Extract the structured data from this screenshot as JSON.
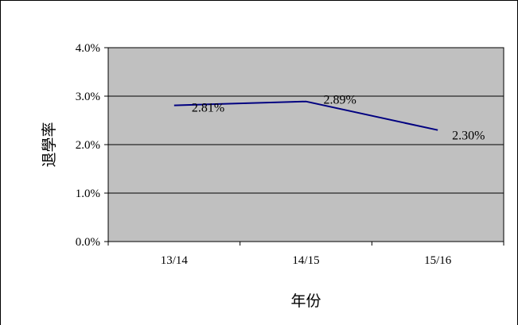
{
  "chart_data": {
    "type": "line",
    "categories": [
      "13/14",
      "14/15",
      "15/16"
    ],
    "series": [
      {
        "values": [
          2.81,
          2.89,
          2.3
        ],
        "labels": [
          "2.81%",
          "2.89%",
          "2.30%"
        ],
        "color": "#000080"
      }
    ],
    "y_ticks": [
      "4.0%",
      "3.0%",
      "2.0%",
      "1.0%",
      "0.0%"
    ],
    "ylim": [
      0,
      4
    ],
    "xlabel": "年份",
    "ylabel": "退學率",
    "grid": true,
    "plot_background": "#c0c0c0"
  }
}
